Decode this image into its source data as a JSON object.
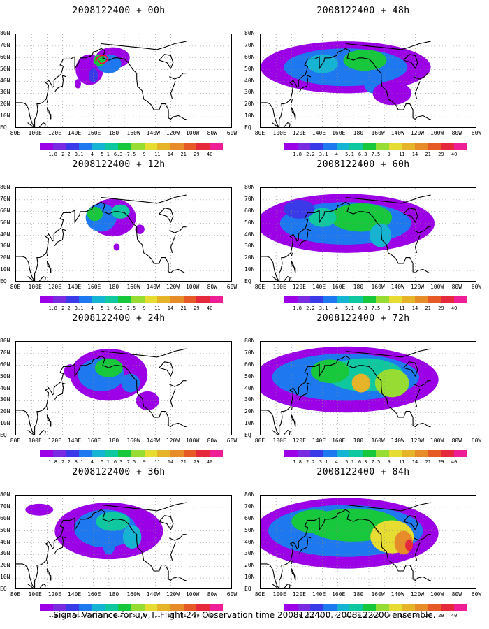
{
  "caption": "Signal Variance for u,v,T. Flight 24. Observation time 2008122400. 2008122200 ensemble.",
  "colors": {
    "levels": [
      "#9b00e6",
      "#7a2ae0",
      "#3a3ae8",
      "#1e78f0",
      "#14b4d2",
      "#10c8a0",
      "#18c83c",
      "#96dc32",
      "#e6dc32",
      "#e6b428",
      "#e68c28",
      "#e65a28",
      "#e6283c",
      "#f01e96"
    ],
    "coast": "#000000",
    "flight_track": "#ff0044"
  },
  "chart_data": {
    "type": "map",
    "lat_ticks": [
      "80N",
      "70N",
      "60N",
      "50N",
      "40N",
      "30N",
      "20N",
      "10N",
      "EQ"
    ],
    "lon_ticks": [
      "80E",
      "100E",
      "120E",
      "140E",
      "160E",
      "180",
      "160W",
      "140W",
      "120W",
      "100W",
      "80W",
      "60W"
    ],
    "colorbar_levels": [
      "1.8",
      "2.2",
      "3.1",
      "4",
      "5.1",
      "6.3",
      "7.5",
      "9",
      "11",
      "14",
      "21",
      "29",
      "40"
    ],
    "panels": [
      {
        "title": "2008122400 + 00h",
        "lead_hours": 0,
        "position": "left-row1"
      },
      {
        "title": "2008122400 + 12h",
        "lead_hours": 12,
        "position": "left-row2"
      },
      {
        "title": "2008122400 + 24h",
        "lead_hours": 24,
        "position": "left-row3"
      },
      {
        "title": "2008122400 + 36h",
        "lead_hours": 36,
        "position": "left-row4"
      },
      {
        "title": "2008122400 + 48h",
        "lead_hours": 48,
        "position": "right-row1"
      },
      {
        "title": "2008122400 + 60h",
        "lead_hours": 60,
        "position": "right-row2"
      },
      {
        "title": "2008122400 + 72h",
        "lead_hours": 72,
        "position": "right-row3"
      },
      {
        "title": "2008122400 + 84h",
        "lead_hours": 84,
        "position": "right-row4"
      }
    ]
  }
}
